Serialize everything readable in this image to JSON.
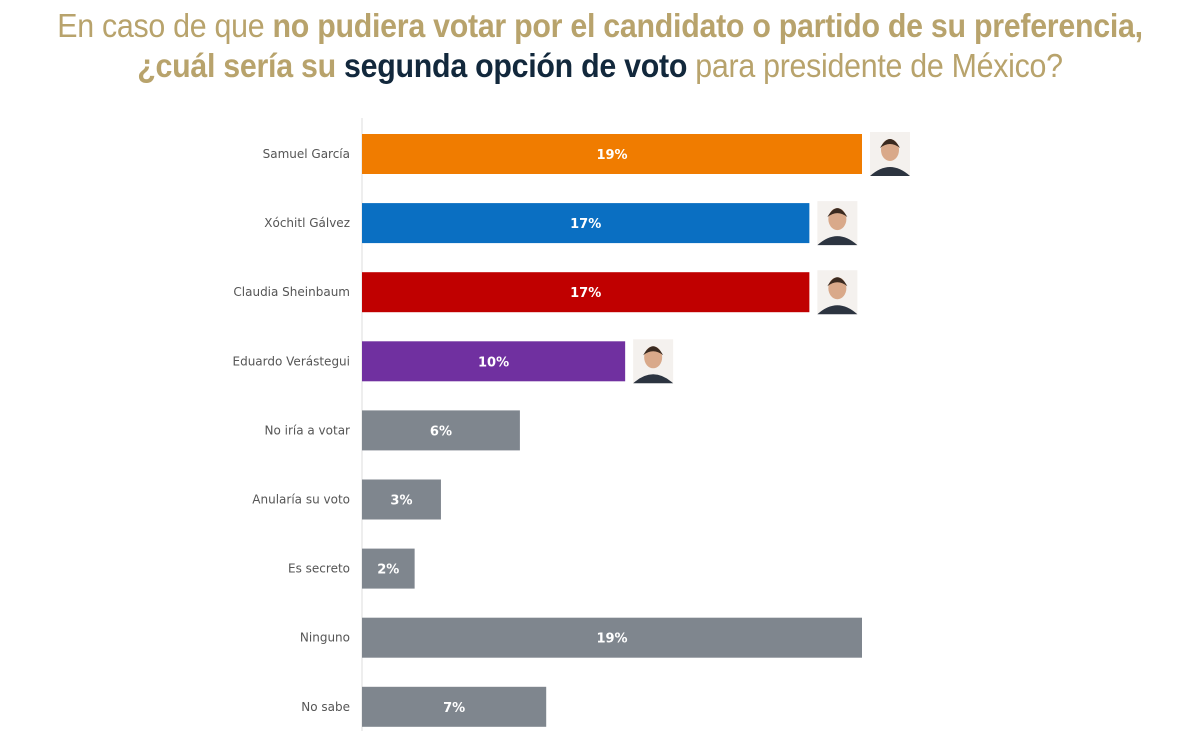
{
  "title": {
    "line1_a": "En caso de que ",
    "line1_b": "no pudiera votar por el candidato o partido de su preferencia,",
    "line2_a": "¿cuál sería su ",
    "line2_b": "segunda opción de voto",
    "line2_c": " para presidente de México?"
  },
  "colors": {
    "title_gold": "#b8a36c",
    "title_dark": "#12283c"
  },
  "chart_data": {
    "type": "bar",
    "orientation": "horizontal",
    "categories": [
      "Samuel García",
      "Xóchitl Gálvez",
      "Claudia Sheinbaum",
      "Eduardo Verástegui",
      "No iría a votar",
      "Anularía su voto",
      "Es secreto",
      "Ninguno",
      "No sabe"
    ],
    "values": [
      19,
      17,
      17,
      10,
      6,
      3,
      2,
      19,
      7
    ],
    "labels": [
      "19%",
      "17%",
      "17%",
      "10%",
      "6%",
      "3%",
      "2%",
      "19%",
      "7%"
    ],
    "colors": [
      "#f07c00",
      "#0a6fc2",
      "#c00000",
      "#7030a0",
      "#7f868e",
      "#7f868e",
      "#7f868e",
      "#7f868e",
      "#7f868e"
    ],
    "photos": [
      true,
      true,
      true,
      true,
      false,
      false,
      false,
      false,
      false
    ],
    "xlim": [
      0,
      19
    ],
    "grid": false,
    "legend": "none"
  }
}
